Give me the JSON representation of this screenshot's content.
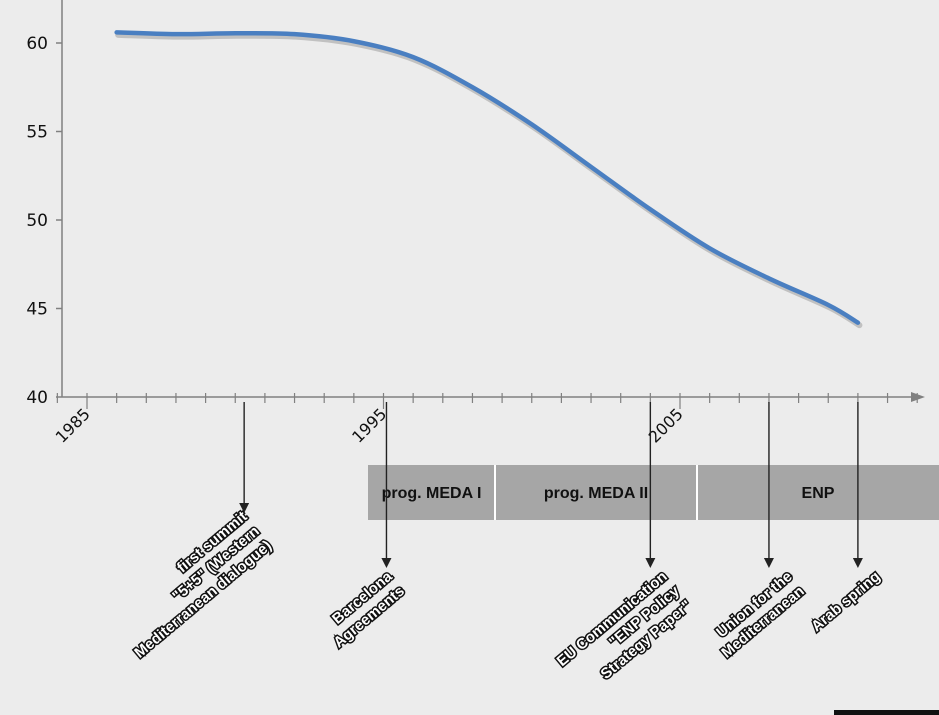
{
  "chart_data": {
    "type": "line",
    "title": "",
    "xlabel": "",
    "ylabel": "",
    "xlim": [
      1983,
      2016.5
    ],
    "ylim": [
      40,
      62
    ],
    "yticks": [
      40,
      45,
      50,
      55,
      60
    ],
    "xticks": [
      1985,
      1995,
      2005
    ],
    "grid": false,
    "series": [
      {
        "color": "#4a7fc1",
        "x": [
          1986,
          1988,
          1990,
          1992,
          1994,
          1996,
          1998,
          2000,
          2002,
          2004,
          2006,
          2008,
          2010,
          2011
        ],
        "y": [
          60.6,
          60.5,
          60.55,
          60.5,
          60.1,
          59.2,
          57.5,
          55.4,
          53.0,
          50.6,
          48.4,
          46.7,
          45.2,
          44.2
        ]
      }
    ],
    "program_bands": [
      {
        "label": "prog. MEDA I",
        "start": 1995,
        "end": 1999.3
      },
      {
        "label": "prog. MEDA II",
        "start": 1999.3,
        "end": 2006.1
      },
      {
        "label": "ENP",
        "start": 2006.1,
        "end": 2015.4
      }
    ],
    "events": [
      {
        "year": 1990.3,
        "label": "first summit\n\"5+5\" (Western\nMediterranean dialogue)"
      },
      {
        "year": 1995.1,
        "label": "Barcelona\nAgreements"
      },
      {
        "year": 2004.0,
        "label": "EU Communication\n\"ENP Policy\nStrategy Paper\""
      },
      {
        "year": 2008.0,
        "label": "Union for the\nMediterranean"
      },
      {
        "year": 2011.0,
        "label": "Arab spring"
      }
    ],
    "colors": {
      "background": "#ececec",
      "axis": "#808080",
      "band": "#a6a6a6",
      "band_divider": "#ffffff",
      "arrow": "#222222",
      "line": "#4a7fc1"
    }
  }
}
